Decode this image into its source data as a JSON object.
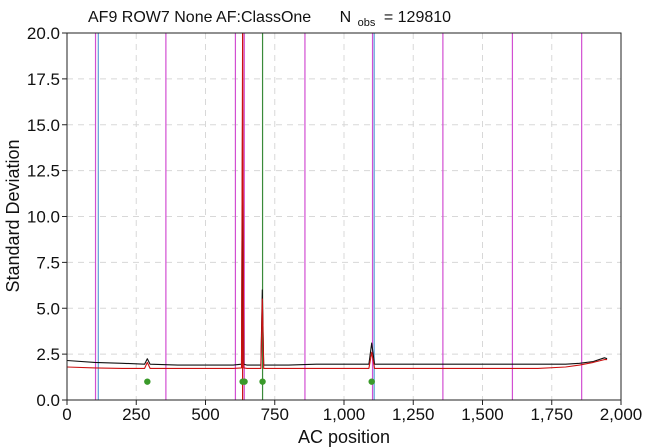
{
  "chart_data": {
    "type": "line",
    "title": {
      "main": "AF9 ROW7 None AF:ClassOne",
      "nobs_label": "N",
      "nobs_subscript": "obs",
      "nobs_equals": "= 129810"
    },
    "xlabel": "AC position",
    "ylabel": "Standard Deviation",
    "xlim": [
      0,
      2000
    ],
    "ylim": [
      0,
      20
    ],
    "x_ticks": [
      {
        "value": 0,
        "label": "0"
      },
      {
        "value": 250,
        "label": "250"
      },
      {
        "value": 500,
        "label": "500"
      },
      {
        "value": 750,
        "label": "750"
      },
      {
        "value": 1000,
        "label": "1,000"
      },
      {
        "value": 1250,
        "label": "1,250"
      },
      {
        "value": 1500,
        "label": "1,500"
      },
      {
        "value": 1750,
        "label": "1,750"
      },
      {
        "value": 2000,
        "label": "2,000"
      }
    ],
    "y_ticks": [
      {
        "value": 0,
        "label": "0.0"
      },
      {
        "value": 2.5,
        "label": "2.5"
      },
      {
        "value": 5,
        "label": "5.0"
      },
      {
        "value": 7.5,
        "label": "7.5"
      },
      {
        "value": 10,
        "label": "10.0"
      },
      {
        "value": 12.5,
        "label": "12.5"
      },
      {
        "value": 15,
        "label": "15.0"
      },
      {
        "value": 17.5,
        "label": "17.5"
      },
      {
        "value": 20,
        "label": "20.0"
      }
    ],
    "grid": true,
    "series": [
      {
        "color": "#111111",
        "x": [
          0,
          100,
          200,
          280,
          290,
          300,
          400,
          500,
          600,
          630,
          634,
          638,
          650,
          700,
          705,
          710,
          800,
          900,
          1000,
          1090,
          1100,
          1110,
          1200,
          1300,
          1400,
          1500,
          1600,
          1700,
          1800,
          1850,
          1900,
          1940,
          1950
        ],
        "y": [
          2.15,
          2.05,
          2.0,
          1.95,
          2.25,
          1.95,
          1.9,
          1.9,
          1.9,
          1.95,
          15.8,
          1.95,
          1.9,
          1.9,
          6.0,
          1.9,
          1.9,
          1.95,
          1.95,
          1.95,
          3.1,
          1.95,
          1.95,
          1.95,
          1.95,
          1.95,
          1.95,
          1.95,
          1.95,
          2.0,
          2.1,
          2.3,
          2.25
        ]
      },
      {
        "color": "#cc1111",
        "x": [
          0,
          100,
          200,
          280,
          290,
          300,
          400,
          500,
          600,
          630,
          634,
          638,
          650,
          700,
          705,
          710,
          800,
          900,
          1000,
          1090,
          1100,
          1110,
          1200,
          1300,
          1400,
          1500,
          1600,
          1700,
          1800,
          1850,
          1900,
          1940,
          1950
        ],
        "y": [
          1.8,
          1.75,
          1.72,
          1.72,
          2.05,
          1.72,
          1.72,
          1.72,
          1.72,
          1.75,
          20.0,
          1.75,
          1.72,
          1.72,
          5.5,
          1.72,
          1.72,
          1.72,
          1.72,
          1.72,
          2.6,
          1.72,
          1.72,
          1.72,
          1.72,
          1.72,
          1.72,
          1.72,
          1.8,
          1.9,
          2.05,
          2.2,
          2.2
        ]
      }
    ],
    "vertical_lines": [
      {
        "x": 103,
        "color": "#d24fd2"
      },
      {
        "x": 113,
        "color": "#5ca0d8"
      },
      {
        "x": 357,
        "color": "#d24fd2"
      },
      {
        "x": 608,
        "color": "#d24fd2"
      },
      {
        "x": 634,
        "color": "#cc1111"
      },
      {
        "x": 640,
        "color": "#d24fd2"
      },
      {
        "x": 706,
        "color": "#3a8a3a"
      },
      {
        "x": 859,
        "color": "#d24fd2"
      },
      {
        "x": 1103,
        "color": "#d24fd2"
      },
      {
        "x": 1109,
        "color": "#5ca0d8"
      },
      {
        "x": 1357,
        "color": "#d24fd2"
      },
      {
        "x": 1608,
        "color": "#d24fd2"
      },
      {
        "x": 1858,
        "color": "#d24fd2"
      }
    ],
    "markers": {
      "color": "#3a9a2a",
      "y": 1.0,
      "x": [
        290,
        634,
        641,
        706,
        1100
      ]
    }
  }
}
